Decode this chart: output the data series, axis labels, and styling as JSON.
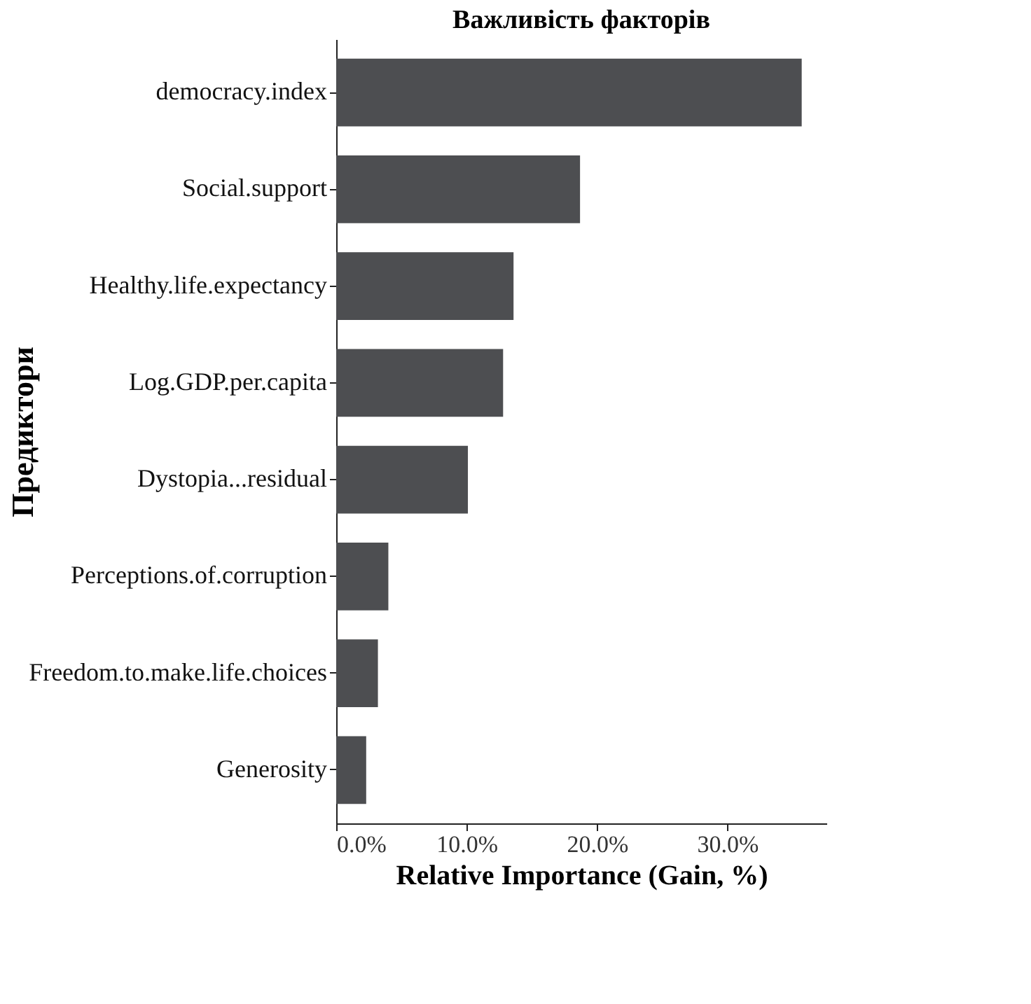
{
  "chart_data": {
    "type": "bar",
    "orientation": "horizontal",
    "title": "Важливість факторів",
    "xlabel": "Relative Importance (Gain, %)",
    "ylabel": "Предиктори",
    "categories": [
      "democracy.index",
      "Social.support",
      "Healthy.life.expectancy",
      "Log.GDP.per.capita",
      "Dystopia...residual",
      "Perceptions.of.corruption",
      "Freedom.to.make.life.choices",
      "Generosity"
    ],
    "values": [
      35.7,
      18.7,
      13.6,
      12.8,
      10.1,
      4.0,
      3.2,
      2.3
    ],
    "color": "#4d4e51",
    "xlim": [
      0,
      37.6
    ],
    "xticks": [
      {
        "value": 0,
        "label": "0.0%"
      },
      {
        "value": 10,
        "label": "10.0%"
      },
      {
        "value": 20,
        "label": "20.0%"
      },
      {
        "value": 30,
        "label": "30.0%"
      }
    ],
    "grid": false
  }
}
